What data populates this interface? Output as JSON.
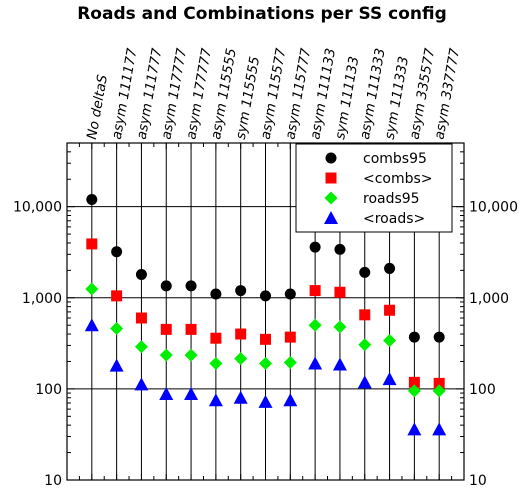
{
  "chart_data": {
    "type": "scatter",
    "title": "Roads and Combinations per SS config",
    "categories": [
      "No deltaS",
      "asym 111177",
      "asym 111777",
      "asym 117777",
      "asym 177777",
      "asym 115555",
      "sym 115555",
      "asym 115577",
      "asym 115777",
      "asym 111133",
      "sym 111133",
      "asym 111333",
      "sym 111333",
      "asym 335577",
      "asym 337777"
    ],
    "y_scale": "log",
    "ylim": [
      10,
      50000
    ],
    "y_ticks": [
      10,
      100,
      1000,
      10000
    ],
    "y_tick_labels": [
      "10",
      "100",
      "1,000",
      "10,000"
    ],
    "grid": true,
    "legend_position": "top-right",
    "series": [
      {
        "name": "combs95",
        "marker": "circle",
        "color": "#000000",
        "values": [
          12000,
          3200,
          1800,
          1350,
          1350,
          1100,
          1200,
          1050,
          1100,
          3600,
          3400,
          1900,
          2100,
          370,
          370
        ]
      },
      {
        "name": "<combs>",
        "marker": "square",
        "color": "#ff0000",
        "values": [
          3900,
          1050,
          600,
          450,
          450,
          360,
          400,
          350,
          370,
          1200,
          1150,
          650,
          730,
          118,
          115
        ]
      },
      {
        "name": "roads95",
        "marker": "diamond",
        "color": "#00ee00",
        "values": [
          1250,
          460,
          290,
          235,
          235,
          190,
          215,
          190,
          195,
          500,
          480,
          305,
          340,
          95,
          95
        ]
      },
      {
        "name": "<roads>",
        "marker": "triangle",
        "color": "#0000ff",
        "values": [
          500,
          180,
          112,
          88,
          88,
          75,
          80,
          72,
          75,
          190,
          185,
          118,
          128,
          36,
          36
        ]
      }
    ]
  }
}
